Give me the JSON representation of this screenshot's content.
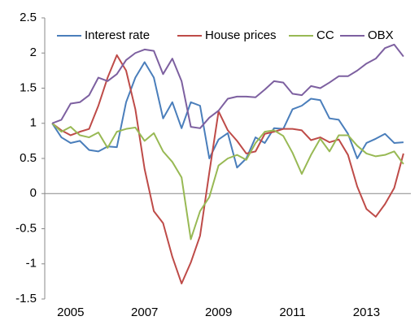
{
  "chart_data": {
    "type": "line",
    "x": [
      2004.5,
      2004.75,
      2005,
      2005.25,
      2005.5,
      2005.75,
      2006,
      2006.25,
      2006.5,
      2006.75,
      2007,
      2007.25,
      2007.5,
      2007.75,
      2008,
      2008.25,
      2008.5,
      2008.75,
      2009,
      2009.25,
      2009.5,
      2009.75,
      2010,
      2010.25,
      2010.5,
      2010.75,
      2011,
      2011.25,
      2011.5,
      2011.75,
      2012,
      2012.25,
      2012.5,
      2012.75,
      2013,
      2013.25,
      2013.5,
      2013.75,
      2014
    ],
    "series": [
      {
        "name": "Interest rate",
        "color": "#4a7ebb",
        "values": [
          1,
          0.8,
          0.72,
          0.75,
          0.62,
          0.6,
          0.67,
          0.66,
          1.3,
          1.65,
          1.87,
          1.65,
          1.07,
          1.3,
          0.93,
          1.3,
          1.25,
          0.5,
          0.77,
          0.86,
          0.37,
          0.5,
          0.8,
          0.72,
          0.93,
          0.92,
          1.2,
          1.25,
          1.35,
          1.33,
          1.07,
          1.05,
          0.85,
          0.5,
          0.72,
          0.78,
          0.85,
          0.72,
          0.73
        ]
      },
      {
        "name": "House prices",
        "color": "#be4b48",
        "values": [
          1,
          0.9,
          0.83,
          0.88,
          0.92,
          1.25,
          1.65,
          1.97,
          1.75,
          1.2,
          0.35,
          -0.25,
          -0.42,
          -0.9,
          -1.28,
          -0.98,
          -0.6,
          0.3,
          1.17,
          0.9,
          0.75,
          0.57,
          0.6,
          0.85,
          0.88,
          0.92,
          0.92,
          0.9,
          0.76,
          0.8,
          0.73,
          0.77,
          0.55,
          0.1,
          -0.22,
          -0.33,
          -0.15,
          0.08,
          0.57
        ]
      },
      {
        "name": "CC",
        "color": "#98b954",
        "values": [
          1,
          0.88,
          0.95,
          0.83,
          0.8,
          0.87,
          0.65,
          0.88,
          0.92,
          0.94,
          0.75,
          0.86,
          0.6,
          0.45,
          0.23,
          -0.65,
          -0.25,
          -0.05,
          0.4,
          0.5,
          0.55,
          0.48,
          0.72,
          0.88,
          0.9,
          0.82,
          0.58,
          0.28,
          0.55,
          0.78,
          0.6,
          0.83,
          0.83,
          0.68,
          0.57,
          0.53,
          0.55,
          0.6,
          0.42
        ]
      },
      {
        "name": "OBX",
        "color": "#7d60a0",
        "values": [
          1,
          1.05,
          1.28,
          1.3,
          1.4,
          1.65,
          1.6,
          1.7,
          1.9,
          2.0,
          2.05,
          2.03,
          1.7,
          1.92,
          1.6,
          0.95,
          0.93,
          1.08,
          1.18,
          1.35,
          1.38,
          1.38,
          1.37,
          1.48,
          1.6,
          1.58,
          1.42,
          1.4,
          1.53,
          1.5,
          1.58,
          1.67,
          1.67,
          1.75,
          1.85,
          1.92,
          2.07,
          2.12,
          1.95
        ]
      }
    ],
    "xlim": [
      2004.3,
      2014.2
    ],
    "xticks": [
      2005,
      2007,
      2009,
      2011,
      2013
    ],
    "ylim": [
      -1.5,
      2.5
    ],
    "yticks": [
      2.5,
      2,
      1.5,
      1,
      0.5,
      0,
      -0.5,
      -1,
      -1.5
    ]
  }
}
